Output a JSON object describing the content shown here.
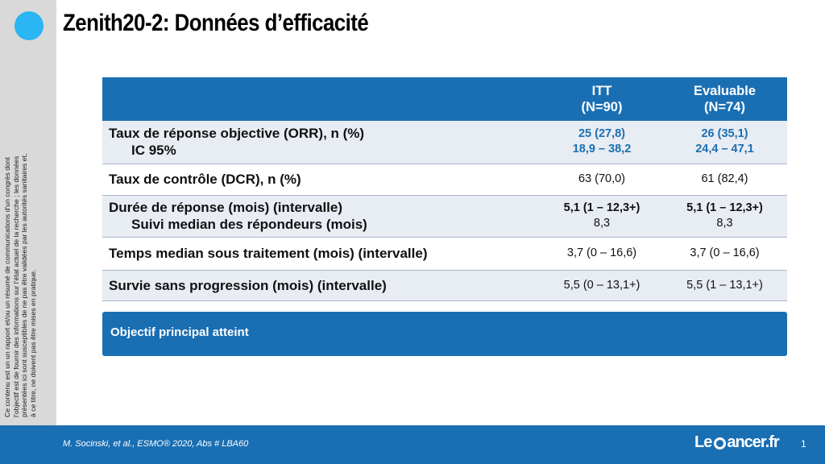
{
  "slide": {
    "title": "Zenith20-2: Données d’efficacité",
    "disclaimer": "Ce contenu est un un rapport et/ou un résumé de communications d’un congrès dont l’objectif est de fournir des informations sur l’état actuel de la recherche ; les données présentées ici sont susceptibles de ne pas être validées par les autorités sanitaires et, à ce titre, ne doivent pas être mises en pratique."
  },
  "table": {
    "headers": [
      {
        "line1": "ITT",
        "line2": "(N=90)"
      },
      {
        "line1": "Evaluable",
        "line2": "(N=74)"
      }
    ],
    "rows": [
      {
        "label": "Taux de réponse objective (ORR), n (%)",
        "sublabel": "IC 95%",
        "itt": "25 (27,8)",
        "itt_sub": "18,9 – 38,2",
        "eval": "26 (35,1)",
        "eval_sub": "24,4 – 47,1"
      },
      {
        "label": "Taux de contrôle (DCR), n (%)",
        "itt": "63 (70,0)",
        "eval": "61 (82,4)"
      },
      {
        "label": "Durée de réponse (mois) (intervalle)",
        "sublabel": "Suivi median des répondeurs (mois)",
        "itt": "5,1 (1 – 12,3+)",
        "itt_sub": "8,3",
        "eval": "5,1 (1 – 12,3+)",
        "eval_sub": "8,3"
      },
      {
        "label": "Temps median sous traitement (mois) (intervalle)",
        "itt": "3,7 (0 – 16,6)",
        "eval": "3,7 (0 – 16,6)"
      },
      {
        "label": "Survie sans progression (mois) (intervalle)",
        "itt": "5,5 (0 – 13,1+)",
        "eval": "5,5 (1 – 13,1+)"
      }
    ]
  },
  "banner": {
    "text": "Objectif principal atteint"
  },
  "footer": {
    "citation": "M. Socinski, et al., ESMO® 2020, Abs # LBA60",
    "logo_left": "Le",
    "logo_right": "ancer.fr",
    "page_number": "1"
  },
  "colors": {
    "primary_blue": "#1a6fb3",
    "accent_dot": "#29b6f2",
    "row_shade": "#e8ecf3",
    "sidebar_gray": "#d9d9d9"
  }
}
